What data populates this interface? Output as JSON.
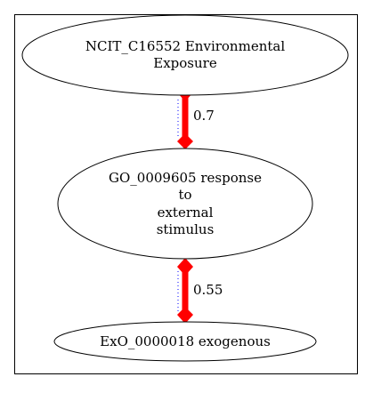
{
  "diagram": {
    "nodes": [
      {
        "id": "NCIT_C16552",
        "lines": [
          "NCIT_C16552 Environmental",
          "Exposure"
        ]
      },
      {
        "id": "GO_0009605",
        "lines": [
          "GO_0009605 response",
          "to",
          "external",
          "stimulus"
        ]
      },
      {
        "id": "ExO_0000018",
        "lines": [
          "ExO_0000018 exogenous"
        ]
      }
    ],
    "edges": [
      {
        "from": "NCIT_C16552",
        "to": "GO_0009605",
        "weight": "0.7"
      },
      {
        "from": "GO_0009605",
        "to": "ExO_0000018",
        "weight": "0.55"
      }
    ],
    "colors": {
      "node_stroke": "#000000",
      "edge": "#ff0000",
      "edge_dotted": "#0000ff",
      "frame": "#000000"
    }
  }
}
